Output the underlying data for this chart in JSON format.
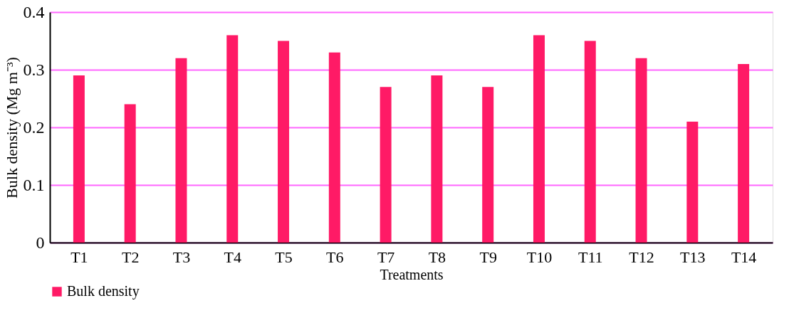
{
  "chart_data": {
    "type": "bar",
    "xlabel": "Treatments",
    "ylabel": "Bulk density (Mg m⁻³)",
    "categories": [
      "T1",
      "T2",
      "T3",
      "T4",
      "T5",
      "T6",
      "T7",
      "T8",
      "T9",
      "T10",
      "T11",
      "T12",
      "T13",
      "T14"
    ],
    "series": [
      {
        "name": "Bulk density",
        "color": "#ff1a66",
        "values": [
          0.29,
          0.24,
          0.32,
          0.36,
          0.35,
          0.33,
          0.27,
          0.29,
          0.27,
          0.36,
          0.35,
          0.32,
          0.21,
          0.31
        ]
      }
    ],
    "ylim": [
      0,
      0.4
    ],
    "yticks": [
      0,
      0.1,
      0.2,
      0.3,
      0.4
    ],
    "grid": "y",
    "legend": "bottom"
  }
}
